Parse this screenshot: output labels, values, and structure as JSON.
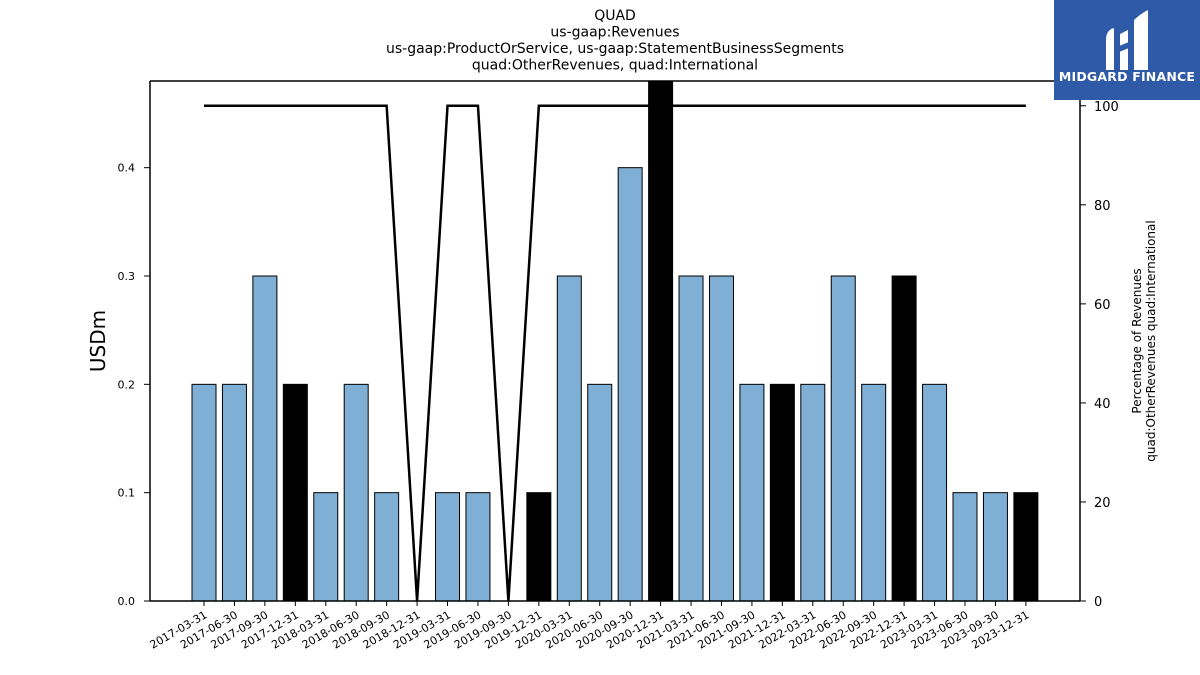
{
  "chart_data": {
    "type": "bar",
    "title_lines": [
      "QUAD",
      "us-gaap:Revenues",
      "us-gaap:ProductOrService, us-gaap:StatementBusinessSegments",
      "quad:OtherRevenues, quad:International"
    ],
    "ylabel": "USDm",
    "y2label_lines": [
      "Percentage of Revenues",
      "quad:OtherRevenues quad:International"
    ],
    "ylim": [
      0,
      0.48
    ],
    "y_ticks": [
      "0.0",
      "0.1",
      "0.2",
      "0.3",
      "0.4"
    ],
    "y2lim": [
      0,
      105
    ],
    "y2_ticks": [
      "0",
      "20",
      "40",
      "60",
      "80",
      "100"
    ],
    "categories": [
      "2017-03-31",
      "2017-06-30",
      "2017-09-30",
      "2017-12-31",
      "2018-03-31",
      "2018-06-30",
      "2018-09-30",
      "2018-12-31",
      "2019-03-31",
      "2019-06-30",
      "2019-09-30",
      "2019-12-31",
      "2020-03-31",
      "2020-06-30",
      "2020-09-30",
      "2020-12-31",
      "2021-03-31",
      "2021-06-30",
      "2021-09-30",
      "2021-12-31",
      "2022-03-31",
      "2022-06-30",
      "2022-09-30",
      "2022-12-31",
      "2023-03-31",
      "2023-06-30",
      "2023-09-30",
      "2023-12-31"
    ],
    "values": [
      0.2,
      0.2,
      0.3,
      0.2,
      0.1,
      0.2,
      0.1,
      0,
      0.1,
      0.1,
      0,
      0.1,
      0.3,
      0.2,
      0.4,
      0.5,
      0.3,
      0.3,
      0.2,
      0.2,
      0.2,
      0.3,
      0.2,
      0.3,
      0.2,
      0.1,
      0.1,
      0.1
    ],
    "bar_colors": [
      "#7fafd4",
      "#7fafd4",
      "#7fafd4",
      "#000000",
      "#7fafd4",
      "#7fafd4",
      "#7fafd4",
      "#7fafd4",
      "#7fafd4",
      "#7fafd4",
      "#7fafd4",
      "#000000",
      "#7fafd4",
      "#7fafd4",
      "#7fafd4",
      "#000000",
      "#7fafd4",
      "#7fafd4",
      "#7fafd4",
      "#000000",
      "#7fafd4",
      "#7fafd4",
      "#7fafd4",
      "#000000",
      "#7fafd4",
      "#7fafd4",
      "#7fafd4",
      "#000000"
    ],
    "line_series": {
      "values": [
        100,
        100,
        100,
        100,
        100,
        100,
        100,
        0,
        100,
        100,
        0,
        100,
        100,
        100,
        100,
        100,
        100,
        100,
        100,
        100,
        100,
        100,
        100,
        100,
        100,
        100,
        100,
        100
      ],
      "color": "#000000"
    },
    "grid": false
  },
  "logo": {
    "text": "MIDGARD FINANCE",
    "bg_color": "#2f5aa8"
  }
}
